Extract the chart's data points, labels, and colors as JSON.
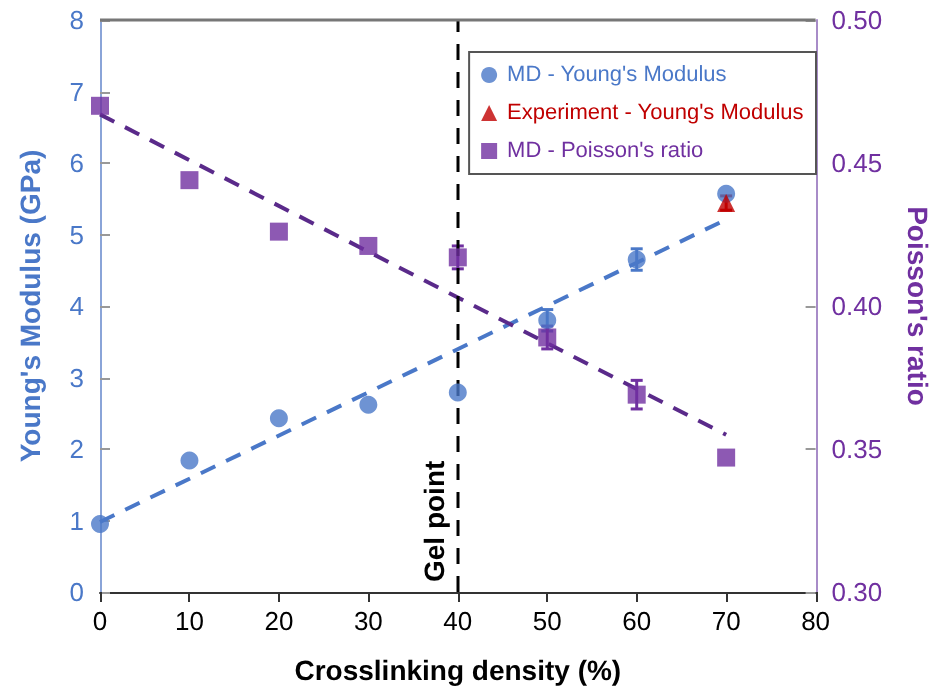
{
  "chart_data": {
    "type": "scatter",
    "xlabel": "Crosslinking density (%)",
    "ylabel": "Young's Modulus (GPa)",
    "y2label": "Poisson's ratio",
    "x": [
      0,
      10,
      20,
      30,
      40,
      50,
      60,
      70
    ],
    "series": [
      {
        "name": "MD - Young's Modulus",
        "color": "#4a78c8",
        "marker": "circle",
        "values": [
          0.95,
          1.84,
          2.43,
          2.62,
          2.79,
          3.8,
          4.65,
          5.57
        ],
        "errors": [
          null,
          null,
          null,
          null,
          null,
          0.15,
          0.15,
          null
        ]
      },
      {
        "name": "Experiment - Young's Modulus",
        "color": "#c00000",
        "marker": "triangle",
        "values": [
          null,
          null,
          null,
          null,
          null,
          null,
          null,
          5.44
        ],
        "errors": [
          null,
          null,
          null,
          null,
          null,
          null,
          null,
          0.1
        ]
      },
      {
        "name": "MD - Poisson's ratio",
        "color": "#7030a0",
        "marker": "square",
        "axis": "y2",
        "values": [
          0.47,
          0.444,
          0.426,
          0.421,
          0.417,
          0.389,
          0.369,
          0.347
        ],
        "errors": [
          null,
          null,
          null,
          null,
          0.004,
          0.004,
          0.005,
          null
        ]
      },
      {
        "type": "line",
        "color": "#4a78c8",
        "marker": "none",
        "line_style": "dashed",
        "values": [
          0.98,
          null,
          null,
          null,
          null,
          null,
          null,
          5.21
        ]
      },
      {
        "type": "line",
        "color": "#5a2a8a",
        "marker": "none",
        "line_style": "dashed",
        "axis": "y2",
        "values": [
          0.467,
          null,
          null,
          null,
          null,
          null,
          null,
          0.355
        ]
      }
    ],
    "xlim": [
      0,
      80
    ],
    "xticks": [
      0,
      10,
      20,
      30,
      40,
      50,
      60,
      70,
      80
    ],
    "ylim": [
      0,
      8
    ],
    "yticks": [
      0,
      1,
      2,
      3,
      4,
      5,
      6,
      7,
      8
    ],
    "y2lim": [
      0.3,
      0.5
    ],
    "y2ticks": [
      {
        "value": 0.3,
        "label": "0.30"
      },
      {
        "value": 0.35,
        "label": "0.35"
      },
      {
        "value": 0.4,
        "label": "0.40"
      },
      {
        "value": 0.45,
        "label": "0.45"
      },
      {
        "value": 0.5,
        "label": "0.50"
      }
    ],
    "ref_lines": [
      {
        "axis": "x",
        "value": 40,
        "label": "Gel point",
        "color": "#000000",
        "line_style": "dashed"
      }
    ],
    "grid": false,
    "legend": "top right"
  }
}
